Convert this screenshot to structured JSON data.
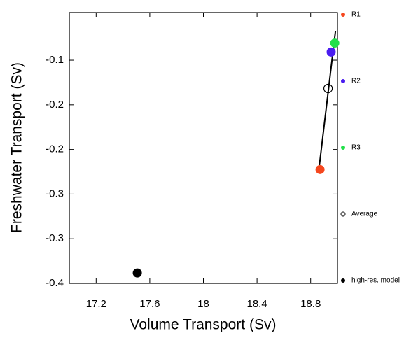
{
  "chart_data": {
    "type": "scatter",
    "xlabel": "Volume Transport (Sv)",
    "ylabel": "Freshwater Transport (Sv)",
    "xlim": [
      17.0,
      19.0
    ],
    "ylim": [
      -0.4,
      -0.036
    ],
    "xticks": [
      17.2,
      17.6,
      18.0,
      18.4,
      18.8
    ],
    "yticks": [
      {
        "value": -0.4,
        "label": "-0.4"
      },
      {
        "value": -0.34,
        "label": "-0.3"
      },
      {
        "value": -0.28,
        "label": "-0.3"
      },
      {
        "value": -0.22,
        "label": "-0.2"
      },
      {
        "value": -0.16,
        "label": "-0.2"
      },
      {
        "value": -0.1,
        "label": "-0.1"
      }
    ],
    "series": [
      {
        "name": "R1",
        "color": "#f5471e",
        "filled": true,
        "x": [
          18.87
        ],
        "y": [
          -0.247
        ]
      },
      {
        "name": "R2",
        "color": "#4a1cf0",
        "filled": true,
        "x": [
          18.953
        ],
        "y": [
          -0.089
        ]
      },
      {
        "name": "R3",
        "color": "#22e04a",
        "filled": true,
        "x": [
          18.98
        ],
        "y": [
          -0.077
        ]
      },
      {
        "name": "Average",
        "color": "#000000",
        "filled": false,
        "x": [
          18.93
        ],
        "y": [
          -0.138
        ]
      },
      {
        "name": "high-res. model",
        "color": "#000000",
        "filled": true,
        "x": [
          17.507
        ],
        "y": [
          -0.386
        ]
      }
    ],
    "fit_line": {
      "color": "#000000",
      "x": [
        18.86,
        18.985
      ],
      "y": [
        -0.249,
        -0.061
      ]
    }
  }
}
